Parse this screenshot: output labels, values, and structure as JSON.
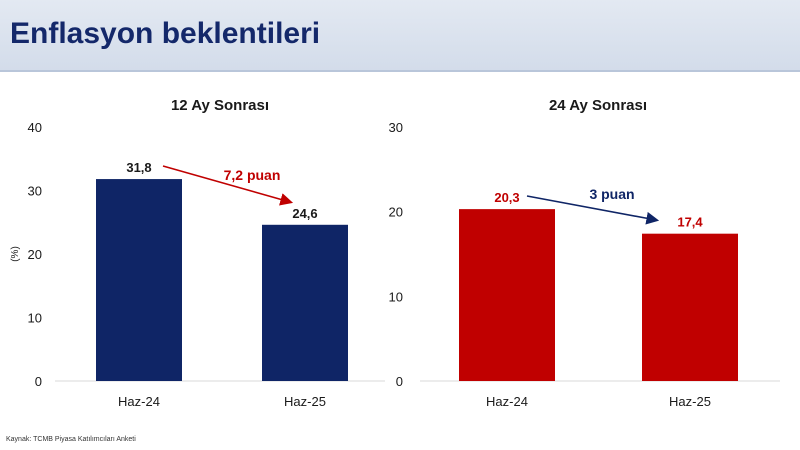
{
  "header": {
    "title": "Enflasyon beklentileri"
  },
  "source": "Kaynak: TCMB Piyasa Katılımcıları Anketi",
  "colors": {
    "navy": "#0f2566",
    "red": "#c00000",
    "header_text": "#14286a"
  },
  "chart_data": [
    {
      "type": "bar",
      "title": "12 Ay Sonrası",
      "ylabel": "(%)",
      "ylim": [
        0,
        40
      ],
      "yticks": [
        0,
        10,
        20,
        30,
        40
      ],
      "categories": [
        "Haz-24",
        "Haz-25"
      ],
      "values": [
        31.8,
        24.6
      ],
      "value_labels": [
        "31,8",
        "24,6"
      ],
      "bar_color": "#0f2566",
      "annotation": {
        "text": "7,2 puan",
        "color": "#c00000"
      }
    },
    {
      "type": "bar",
      "title": "24 Ay Sonrası",
      "ylabel": "",
      "ylim": [
        0,
        30
      ],
      "yticks": [
        0,
        10,
        20,
        30
      ],
      "categories": [
        "Haz-24",
        "Haz-25"
      ],
      "values": [
        20.3,
        17.4
      ],
      "value_labels": [
        "20,3",
        "17,4"
      ],
      "bar_color": "#c00000",
      "annotation": {
        "text": "3 puan",
        "color": "#0f2566"
      }
    }
  ]
}
